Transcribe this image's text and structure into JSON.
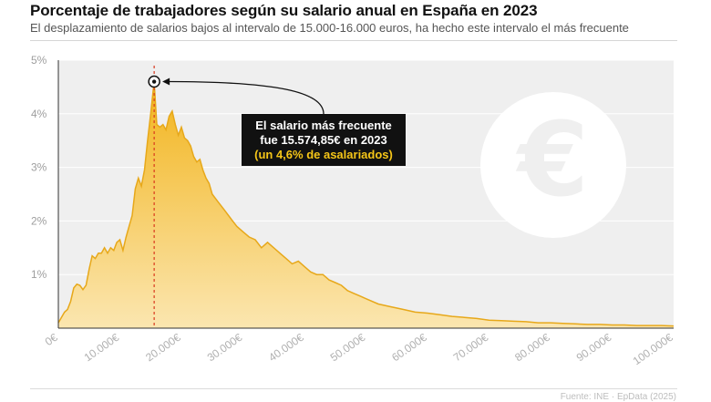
{
  "header": {
    "title": "Porcentaje de trabajadores según su salario anual en España en 2023",
    "subtitle": "El desplazamiento de salarios bajos al intervalo de 15.000-16.000 euros, ha hecho este intervalo el más frecuente"
  },
  "footer": {
    "source": "Fuente: INE · EpData (2025)"
  },
  "colors": {
    "area_top": "#f2b41c",
    "area_bottom": "#fbe6b0",
    "line": "#e7a81a",
    "plot_bg": "#efefef",
    "marker_line": "#d9381e",
    "callout_bg": "#111111",
    "callout_text": "#ffffff",
    "callout_highlight": "#f5c518",
    "euro_circle": "#ffffff"
  },
  "annotation": {
    "line1": "El salario más frecuente",
    "line2": "fue 15.574,85€ en 2023",
    "line3": "(un 4,6% de asalariados)",
    "x": 15575,
    "y": 4.6
  },
  "icons": {
    "euro": "€"
  },
  "chart_data": {
    "type": "area",
    "title": "Porcentaje de trabajadores según su salario anual en España en 2023",
    "xlabel": "",
    "ylabel": "",
    "xlim": [
      0,
      100000
    ],
    "ylim": [
      0,
      5
    ],
    "grid": true,
    "yticks": [
      {
        "value": 1,
        "label": "1%"
      },
      {
        "value": 2,
        "label": "2%"
      },
      {
        "value": 3,
        "label": "3%"
      },
      {
        "value": 4,
        "label": "4%"
      },
      {
        "value": 5,
        "label": "5%"
      }
    ],
    "xticks": [
      {
        "value": 0,
        "label": "0€"
      },
      {
        "value": 10000,
        "label": "10.000€"
      },
      {
        "value": 20000,
        "label": "20.000€"
      },
      {
        "value": 30000,
        "label": "30.000€"
      },
      {
        "value": 40000,
        "label": "40.000€"
      },
      {
        "value": 50000,
        "label": "50.000€"
      },
      {
        "value": 60000,
        "label": "60.000€"
      },
      {
        "value": 70000,
        "label": "70.000€"
      },
      {
        "value": 80000,
        "label": "80.000€"
      },
      {
        "value": 90000,
        "label": "90.000€"
      },
      {
        "value": 100000,
        "label": "100.000€"
      }
    ],
    "series": [
      {
        "name": "Porcentaje de trabajadores",
        "x": [
          0,
          500,
          1000,
          1500,
          2000,
          2500,
          3000,
          3500,
          4000,
          4500,
          5000,
          5500,
          6000,
          6500,
          7000,
          7500,
          8000,
          8500,
          9000,
          9500,
          10000,
          10500,
          11000,
          11500,
          12000,
          12500,
          13000,
          13500,
          14000,
          14500,
          15000,
          15575,
          16000,
          16500,
          17000,
          17500,
          18000,
          18500,
          19000,
          19500,
          20000,
          20500,
          21000,
          21500,
          22000,
          22500,
          23000,
          23500,
          24000,
          24500,
          25000,
          26000,
          27000,
          28000,
          29000,
          30000,
          31000,
          32000,
          33000,
          34000,
          35000,
          36000,
          37000,
          38000,
          39000,
          40000,
          41000,
          42000,
          43000,
          44000,
          45000,
          46000,
          47000,
          48000,
          49000,
          50000,
          52000,
          54000,
          56000,
          58000,
          60000,
          62000,
          64000,
          66000,
          68000,
          70000,
          72000,
          74000,
          76000,
          78000,
          80000,
          82000,
          84000,
          86000,
          88000,
          90000,
          92000,
          94000,
          96000,
          98000,
          100000
        ],
        "values": [
          0.1,
          0.2,
          0.3,
          0.35,
          0.5,
          0.75,
          0.82,
          0.8,
          0.72,
          0.8,
          1.1,
          1.35,
          1.3,
          1.4,
          1.4,
          1.5,
          1.4,
          1.5,
          1.45,
          1.6,
          1.65,
          1.45,
          1.7,
          1.9,
          2.1,
          2.6,
          2.8,
          2.65,
          2.95,
          3.5,
          4.0,
          4.6,
          3.8,
          3.75,
          3.8,
          3.7,
          3.95,
          4.05,
          3.8,
          3.6,
          3.75,
          3.55,
          3.5,
          3.4,
          3.2,
          3.1,
          3.15,
          2.95,
          2.8,
          2.7,
          2.5,
          2.35,
          2.2,
          2.05,
          1.9,
          1.8,
          1.7,
          1.65,
          1.5,
          1.6,
          1.5,
          1.4,
          1.3,
          1.2,
          1.25,
          1.15,
          1.05,
          1.0,
          1.0,
          0.9,
          0.85,
          0.8,
          0.7,
          0.65,
          0.6,
          0.55,
          0.45,
          0.4,
          0.35,
          0.3,
          0.28,
          0.25,
          0.22,
          0.2,
          0.18,
          0.15,
          0.14,
          0.13,
          0.12,
          0.1,
          0.1,
          0.09,
          0.08,
          0.07,
          0.07,
          0.06,
          0.06,
          0.05,
          0.05,
          0.05,
          0.04
        ]
      }
    ]
  }
}
